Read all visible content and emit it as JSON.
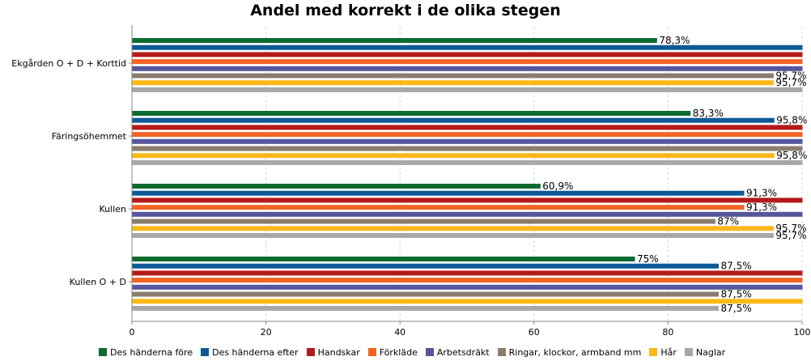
{
  "chart_data": {
    "type": "bar",
    "orientation": "horizontal",
    "title": "Andel med korrekt i de olika stegen",
    "xlabel": "",
    "ylabel": "",
    "xlim": [
      0,
      100
    ],
    "xticks": [
      "0",
      "20",
      "40",
      "60",
      "80",
      "100"
    ],
    "grid": true,
    "legend_position": "bottom",
    "categories": [
      "Ekgården O + D + Korttid",
      "Färingsöhemmet",
      "Kullen",
      "Kullen O + D"
    ],
    "series": [
      {
        "name": "Des händerna före",
        "color": "#0d6b30",
        "values": [
          78.3,
          83.3,
          60.9,
          75
        ],
        "labels": [
          "78,3%",
          "83,3%",
          "60,9%",
          "75%"
        ]
      },
      {
        "name": "Des händerna efter",
        "color": "#0d5a96",
        "values": [
          100,
          95.8,
          91.3,
          87.5
        ],
        "labels": [
          "",
          "95,8%",
          "91,3%",
          "87,5%"
        ]
      },
      {
        "name": "Handskar",
        "color": "#b51a1a",
        "values": [
          100,
          100,
          100,
          100
        ],
        "labels": [
          "",
          "",
          "",
          ""
        ]
      },
      {
        "name": "Förkläde",
        "color": "#f26524",
        "values": [
          100,
          100,
          91.3,
          100
        ],
        "labels": [
          "",
          "",
          "91,3%",
          ""
        ]
      },
      {
        "name": "Arbetsdräkt",
        "color": "#55569b",
        "values": [
          100,
          100,
          100,
          100
        ],
        "labels": [
          "",
          "",
          "",
          ""
        ]
      },
      {
        "name": "Ringar, klockor, armband mm",
        "color": "#8b7d6e",
        "values": [
          95.7,
          100,
          87,
          87.5
        ],
        "labels": [
          "95,7%",
          "",
          "87%",
          "87,5%"
        ]
      },
      {
        "name": "Hår",
        "color": "#fbb917",
        "values": [
          95.7,
          95.8,
          95.7,
          100
        ],
        "labels": [
          "95,7%",
          "95,8%",
          "95,7%",
          ""
        ]
      },
      {
        "name": "Naglar",
        "color": "#a6a8aa",
        "values": [
          100,
          100,
          95.7,
          87.5
        ],
        "labels": [
          "",
          "",
          "95,7%",
          "87,5%"
        ]
      }
    ]
  }
}
